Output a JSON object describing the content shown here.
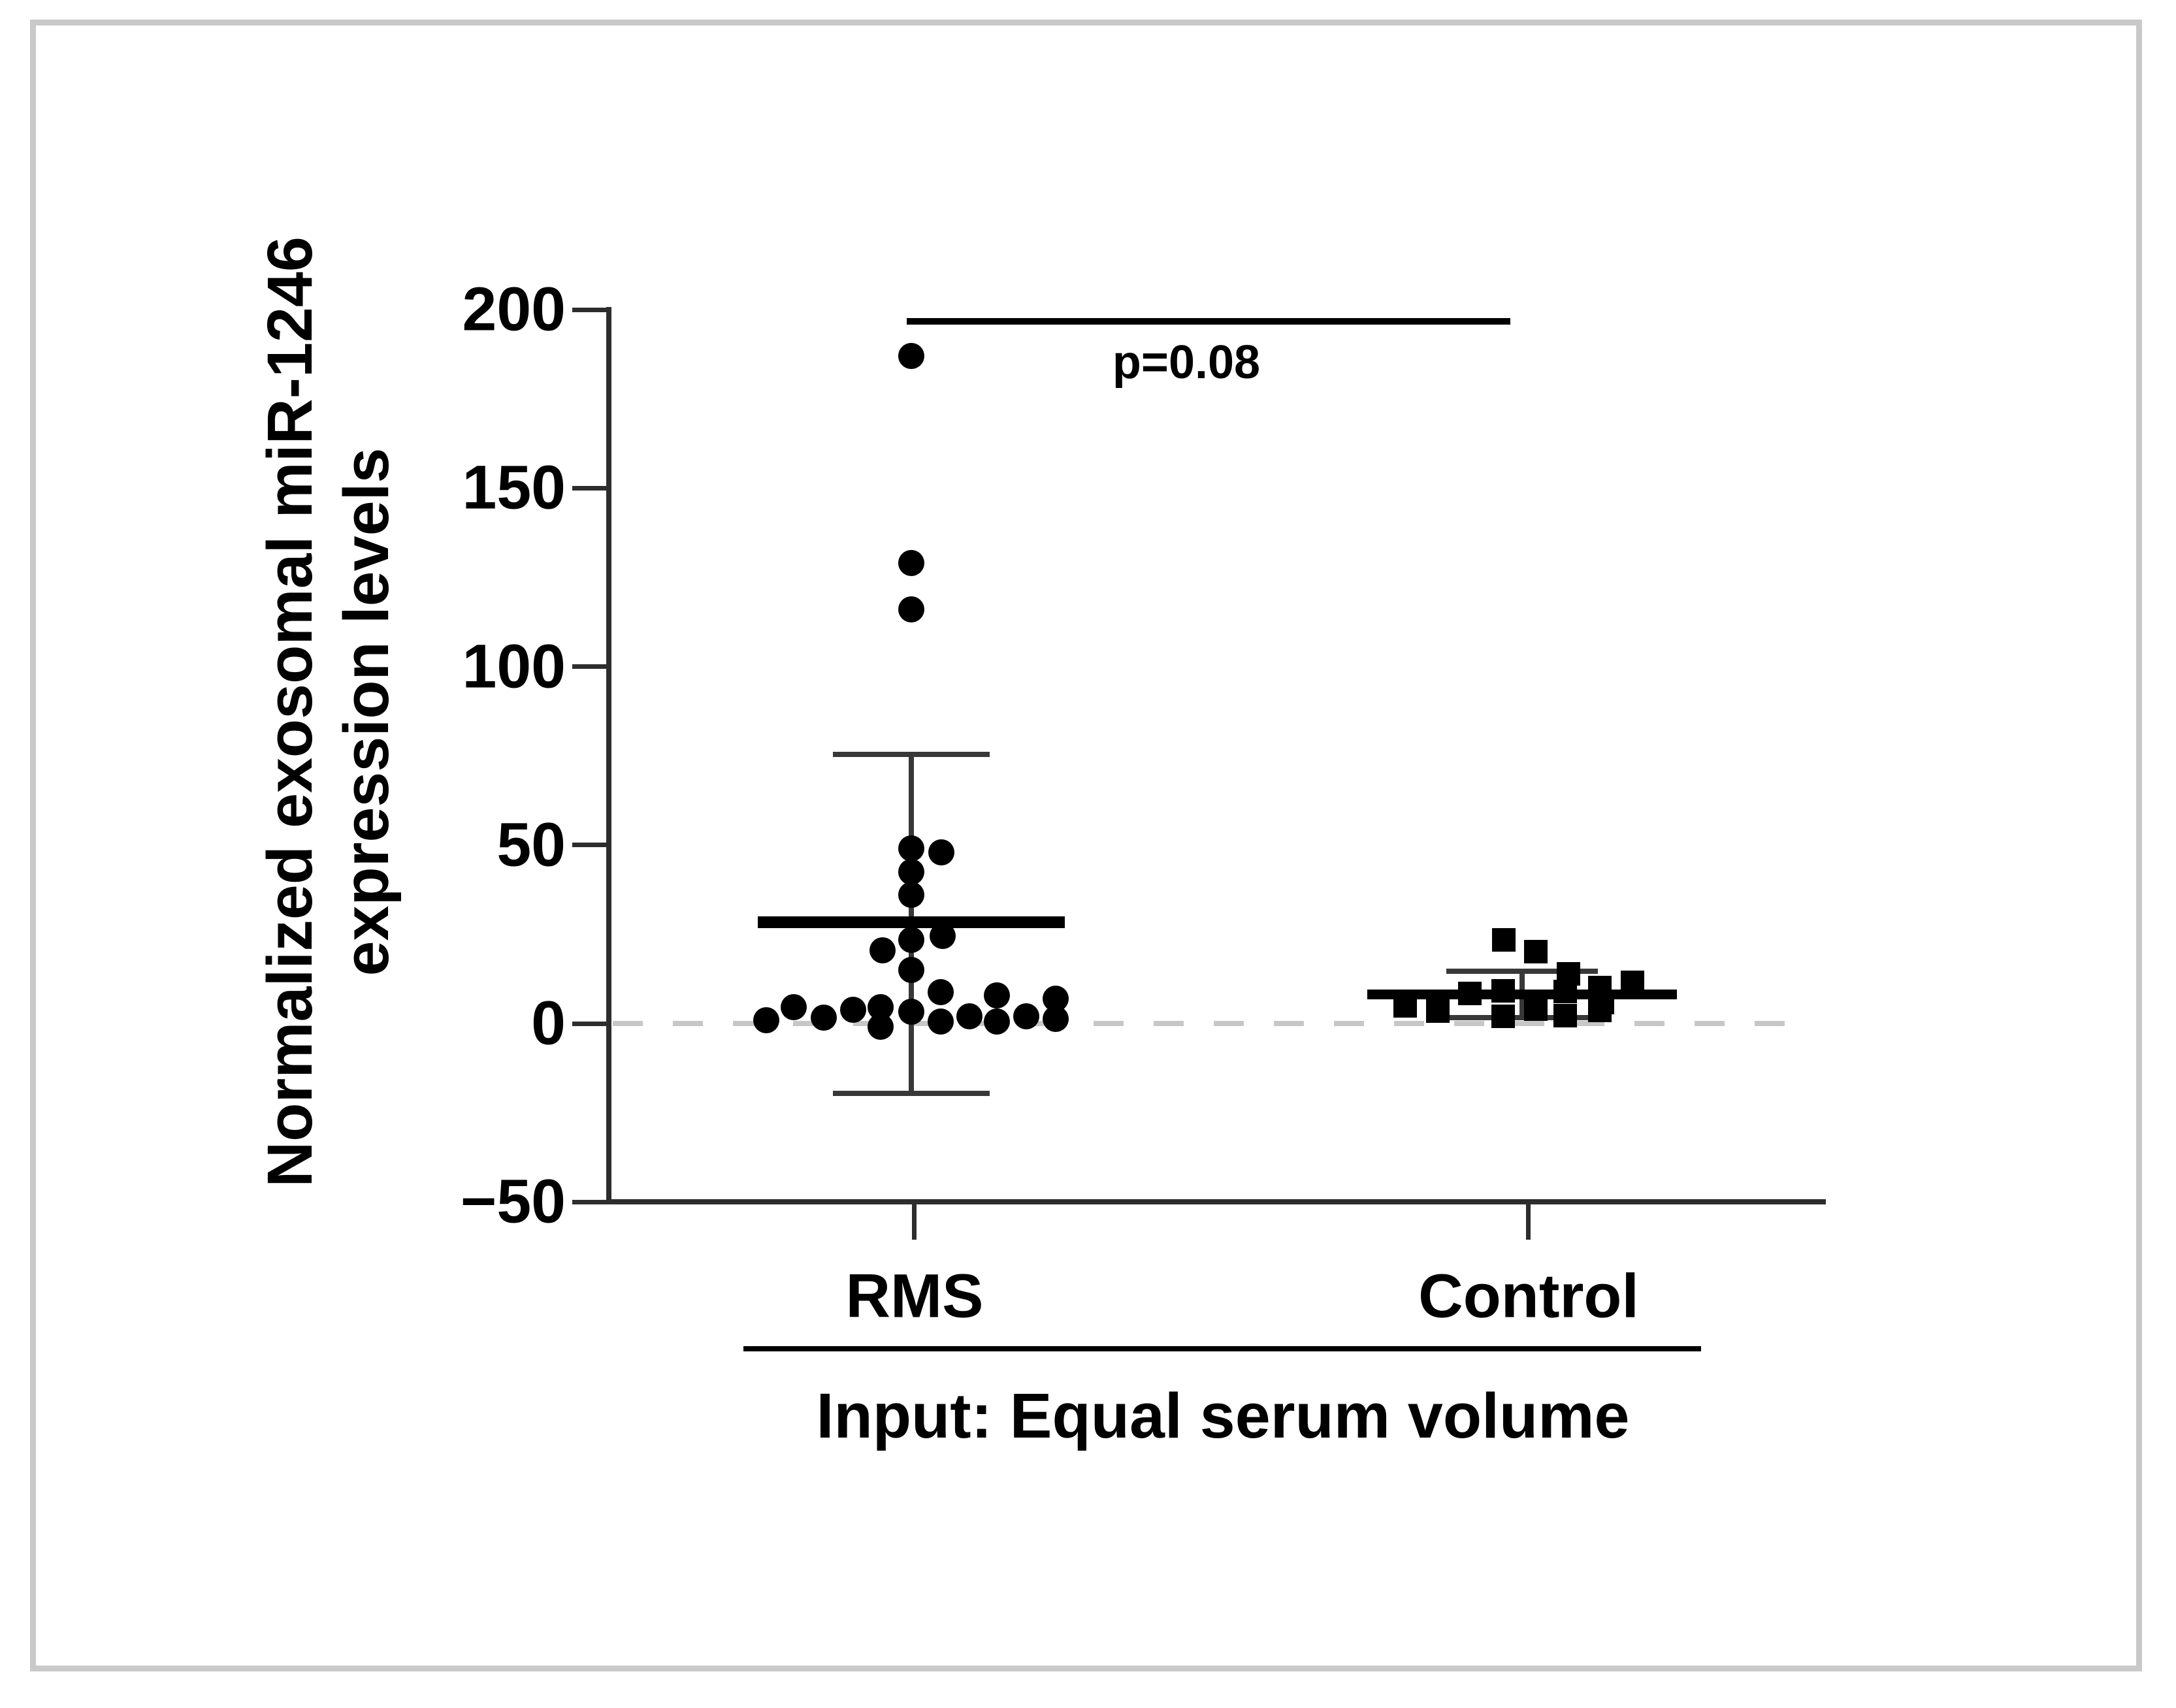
{
  "figure": {
    "kind": "scatter-dot-plot-figure",
    "frame_border_color": "#c9c9c9"
  },
  "colors": {
    "marker": "#000000",
    "mean_line": "#000000",
    "whisker": "#383838",
    "axis": "#2d2d2d",
    "dashed_zero_line": "#c7c7c7",
    "frame_border": "#c9c9c9",
    "text": "#000000"
  },
  "chart_data": {
    "type": "scatter",
    "title": "",
    "ylabel": "Normalized exosomal miR-1246 expression levels",
    "ylabel_lines": [
      "Normalized exosomal miR-1246",
      "expression levels"
    ],
    "xlabel": "Input: Equal serum volume",
    "ylim": [
      -50,
      200
    ],
    "y_ticks": [
      200,
      150,
      100,
      50,
      0,
      -50
    ],
    "grid": false,
    "zero_line": {
      "value": 0,
      "style": "dashed",
      "color": "#c7c7c7"
    },
    "annotation": {
      "text": "p=0.08",
      "line_y_value": 197,
      "compares": [
        "RMS",
        "Control"
      ]
    },
    "categories": [
      "RMS",
      "Control"
    ],
    "series": [
      {
        "name": "RMS",
        "marker": "circle",
        "mean": 28.4,
        "whisker_top": 75.4,
        "whisker_bottom": -19.6,
        "points": [
          [
            0,
            187
          ],
          [
            0,
            129
          ],
          [
            0,
            116
          ],
          [
            0,
            49
          ],
          [
            46,
            48
          ],
          [
            0,
            42.5
          ],
          [
            0,
            36
          ],
          [
            48,
            24.5
          ],
          [
            0,
            23.5
          ],
          [
            -44,
            20.5
          ],
          [
            0,
            15
          ],
          [
            0,
            3.3
          ],
          [
            -222,
            0.9
          ],
          [
            -180,
            4.6
          ],
          [
            -134,
            1.6
          ],
          [
            -89,
            3.8
          ],
          [
            -47,
            4.6
          ],
          [
            -47,
            -0.9
          ],
          [
            45,
            8.8
          ],
          [
            45,
            0.5
          ],
          [
            89,
            2.0
          ],
          [
            131,
            7.9
          ],
          [
            131,
            0.5
          ],
          [
            176,
            2.0
          ],
          [
            221,
            7.0
          ],
          [
            221,
            1.3
          ]
        ]
      },
      {
        "name": "Control",
        "marker": "square",
        "mean": 8.1,
        "whisker_top": 14.6,
        "whisker_bottom": 1.6,
        "points": [
          [
            -28,
            23.4
          ],
          [
            21,
            20.1
          ],
          [
            71,
            13.9
          ],
          [
            169,
            11.5
          ],
          [
            119,
            10.1
          ],
          [
            66,
            9.0
          ],
          [
            -80,
            8.4
          ],
          [
            -29,
            9.1
          ],
          [
            123,
            5.9
          ],
          [
            -179,
            4.9
          ],
          [
            -129,
            3.5
          ],
          [
            21,
            4.0
          ],
          [
            119,
            3.7
          ],
          [
            66,
            2.2
          ],
          [
            -29,
            2.0
          ]
        ]
      }
    ]
  }
}
